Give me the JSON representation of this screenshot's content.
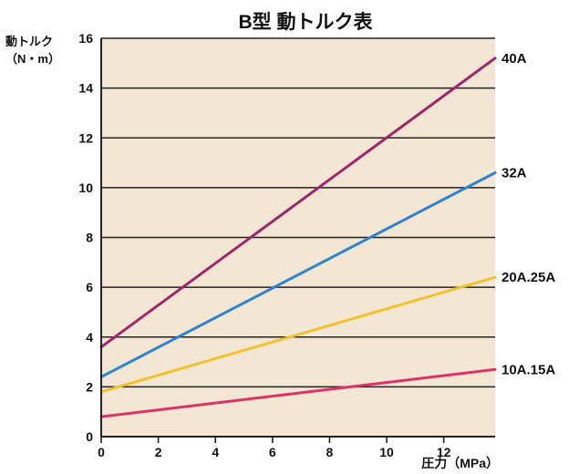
{
  "chart_data": {
    "type": "line",
    "title": "B型 動トルク表",
    "ylabel_line1": "動トルク",
    "ylabel_line2": "（N・m）",
    "xlabel": "圧力（MPa）",
    "xlim": [
      0,
      13.8
    ],
    "ylim": [
      0,
      16
    ],
    "xticks": [
      0,
      2,
      4,
      6,
      8,
      10,
      12
    ],
    "yticks": [
      0,
      2,
      4,
      6,
      8,
      10,
      12,
      14,
      16
    ],
    "grid": "horizontal",
    "background_color": "#f3e6d3",
    "series": [
      {
        "name": "40A",
        "color": "#a0246e",
        "x": [
          0,
          13.8
        ],
        "y": [
          3.6,
          15.2
        ]
      },
      {
        "name": "32A",
        "color": "#2f83cf",
        "x": [
          0,
          13.8
        ],
        "y": [
          2.4,
          10.6
        ]
      },
      {
        "name": "20A.25A",
        "color": "#f2c12e",
        "x": [
          0,
          13.8
        ],
        "y": [
          1.8,
          6.4
        ]
      },
      {
        "name": "10A.15A",
        "color": "#e0306a",
        "x": [
          0,
          13.8
        ],
        "y": [
          0.8,
          2.7
        ]
      }
    ]
  }
}
